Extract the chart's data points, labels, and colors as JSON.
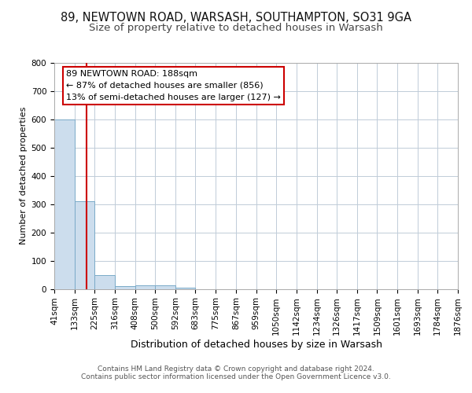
{
  "title1": "89, NEWTOWN ROAD, WARSASH, SOUTHAMPTON, SO31 9GA",
  "title2": "Size of property relative to detached houses in Warsash",
  "xlabel": "Distribution of detached houses by size in Warsash",
  "ylabel": "Number of detached properties",
  "bin_edges": [
    41,
    133,
    225,
    316,
    408,
    500,
    592,
    683,
    775,
    867,
    959,
    1050,
    1142,
    1234,
    1326,
    1417,
    1509,
    1601,
    1693,
    1784,
    1876
  ],
  "bar_heights": [
    600,
    310,
    50,
    10,
    12,
    12,
    5,
    0,
    0,
    0,
    0,
    0,
    0,
    0,
    0,
    0,
    0,
    0,
    0,
    0
  ],
  "bar_color": "#ccdded",
  "bar_edge_color": "#7aaac8",
  "property_size": 188,
  "vline_color": "#cc0000",
  "ylim": [
    0,
    800
  ],
  "yticks": [
    0,
    100,
    200,
    300,
    400,
    500,
    600,
    700,
    800
  ],
  "annotation_line1": "89 NEWTOWN ROAD: 188sqm",
  "annotation_line2": "← 87% of detached houses are smaller (856)",
  "annotation_line3": "13% of semi-detached houses are larger (127) →",
  "annotation_box_color": "#cc0000",
  "footnote_line1": "Contains HM Land Registry data © Crown copyright and database right 2024.",
  "footnote_line2": "Contains public sector information licensed under the Open Government Licence v3.0.",
  "bg_color": "#ffffff",
  "grid_color": "#c0ccd8",
  "title1_fontsize": 10.5,
  "title2_fontsize": 9.5,
  "xlabel_fontsize": 9,
  "ylabel_fontsize": 8,
  "tick_fontsize": 7.5,
  "annotation_fontsize": 8,
  "footnote_fontsize": 6.5
}
